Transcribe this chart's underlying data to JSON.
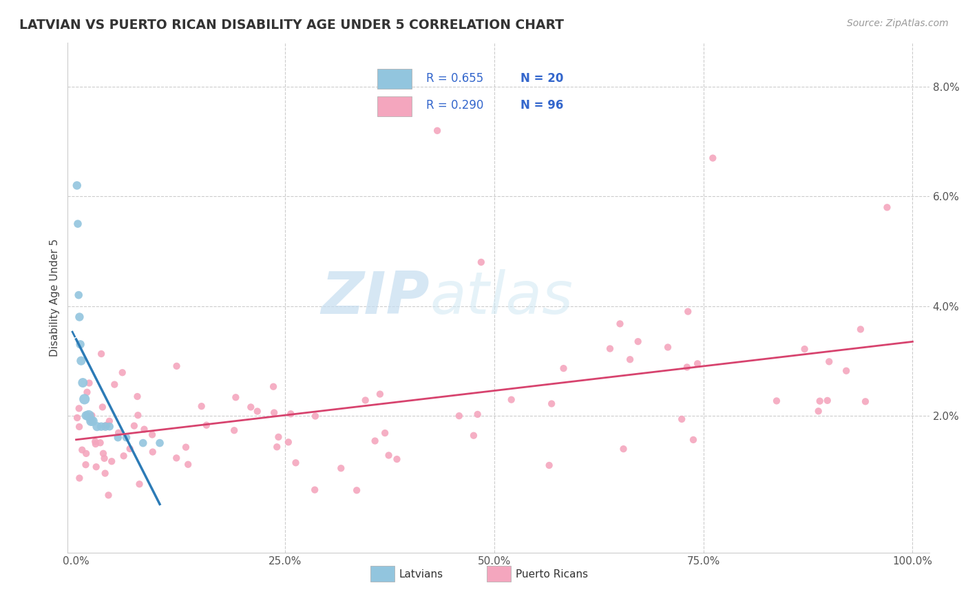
{
  "title": "LATVIAN VS PUERTO RICAN DISABILITY AGE UNDER 5 CORRELATION CHART",
  "source": "Source: ZipAtlas.com",
  "xlabel_latvians": "Latvians",
  "xlabel_puerto_ricans": "Puerto Ricans",
  "ylabel": "Disability Age Under 5",
  "xlim": [
    -0.01,
    1.02
  ],
  "ylim": [
    -0.005,
    0.088
  ],
  "xticks": [
    0.0,
    0.25,
    0.5,
    0.75,
    1.0
  ],
  "xticklabels": [
    "0.0%",
    "25.0%",
    "50.0%",
    "75.0%",
    "100.0%"
  ],
  "yticks": [
    0.0,
    0.02,
    0.04,
    0.06,
    0.08
  ],
  "yticklabels": [
    "",
    "2.0%",
    "4.0%",
    "6.0%",
    "8.0%"
  ],
  "latvian_R": 0.655,
  "latvian_N": 20,
  "puerto_rican_R": 0.29,
  "puerto_rican_N": 96,
  "latvian_color": "#92c5de",
  "puerto_rican_color": "#f4a6be",
  "latvian_line_color": "#2c7bb6",
  "puerto_rican_line_color": "#d7436e",
  "legend_text_color": "#3366cc",
  "background_color": "#ffffff",
  "grid_color": "#cccccc",
  "title_color": "#333333",
  "source_color": "#999999",
  "axis_color": "#cccccc",
  "tick_color": "#555555",
  "watermark_zip_color": "#c5ddf0",
  "watermark_atlas_color": "#d0e8f4"
}
